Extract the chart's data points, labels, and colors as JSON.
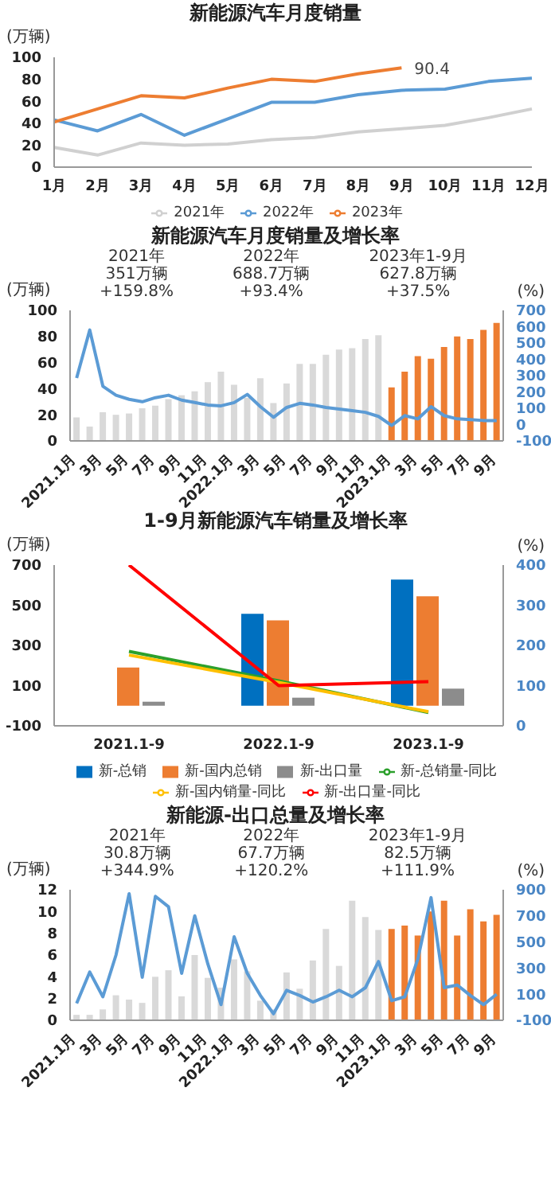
{
  "chart_data": [
    {
      "type": "line",
      "title": "新能源汽车月度销量",
      "ylabel": "(万辆)",
      "categories": [
        "1月",
        "2月",
        "3月",
        "4月",
        "5月",
        "6月",
        "7月",
        "8月",
        "9月",
        "10月",
        "11月",
        "12月"
      ],
      "ylim": [
        0,
        100
      ],
      "yticks": [
        0,
        20,
        40,
        60,
        80,
        100
      ],
      "legend": "bottom",
      "marker": "none",
      "series": [
        {
          "name": "2021年",
          "color": "#d0d0d0",
          "values": [
            18,
            11,
            22,
            20,
            21,
            25,
            27,
            32,
            35,
            38,
            45,
            53
          ]
        },
        {
          "name": "2022年",
          "color": "#5b9bd5",
          "values": [
            43,
            33,
            48,
            29,
            44,
            59,
            59,
            66,
            70,
            71,
            78,
            81
          ]
        },
        {
          "name": "2023年",
          "color": "#ed7d31",
          "values": [
            41,
            53,
            65,
            63,
            72,
            80,
            78,
            85,
            90.4,
            null,
            null,
            null
          ],
          "value_labels": [
            null,
            null,
            null,
            null,
            null,
            null,
            null,
            null,
            "90.4",
            null,
            null,
            null
          ]
        }
      ]
    },
    {
      "type": "bar",
      "title": "新能源汽车月度销量及增长率",
      "ylabel": "(万辆)",
      "y2label": "(%)",
      "annotations": [
        "2021年\n351万辆\n+159.8%",
        "2022年\n688.7万辆\n+93.4%",
        "2023年1-9月\n627.8万辆\n+37.5%"
      ],
      "categories": [
        "2021.1月",
        null,
        "3月",
        null,
        "5月",
        null,
        "7月",
        null,
        "9月",
        null,
        "11月",
        null,
        "2022.1月",
        null,
        "3月",
        null,
        "5月",
        null,
        "7月",
        null,
        "9月",
        null,
        "11月",
        null,
        "2023.1月",
        null,
        "3月",
        null,
        "5月",
        null,
        "7月",
        null,
        "9月"
      ],
      "ylim": [
        0,
        100
      ],
      "yticks": [
        0,
        20,
        40,
        60,
        80,
        100
      ],
      "y2lim": [
        -100,
        700
      ],
      "y2ticks": [
        -100,
        0,
        100,
        200,
        300,
        400,
        500,
        600,
        700
      ],
      "legend": false,
      "marker": "none",
      "series": [
        {
          "values": [
            18,
            11,
            22,
            20,
            21,
            25,
            27,
            32,
            35,
            38,
            45,
            53,
            43,
            33,
            48,
            29,
            44,
            59,
            59,
            66,
            70,
            71,
            78,
            81,
            41,
            53,
            65,
            63,
            72,
            80,
            78,
            85,
            90.4
          ],
          "colors": [
            "#d9d9d9",
            "#d9d9d9",
            "#d9d9d9",
            "#d9d9d9",
            "#d9d9d9",
            "#d9d9d9",
            "#d9d9d9",
            "#d9d9d9",
            "#d9d9d9",
            "#d9d9d9",
            "#d9d9d9",
            "#d9d9d9",
            "#d9d9d9",
            "#d9d9d9",
            "#d9d9d9",
            "#d9d9d9",
            "#d9d9d9",
            "#d9d9d9",
            "#d9d9d9",
            "#d9d9d9",
            "#d9d9d9",
            "#d9d9d9",
            "#d9d9d9",
            "#d9d9d9",
            "#ed7d31",
            "#ed7d31",
            "#ed7d31",
            "#ed7d31",
            "#ed7d31",
            "#ed7d31",
            "#ed7d31",
            "#ed7d31",
            "#ed7d31"
          ]
        },
        {
          "type": "line",
          "axis": "y2",
          "color": "#5b9bd5",
          "values": [
            285,
            580,
            235,
            180,
            155,
            140,
            165,
            180,
            150,
            135,
            120,
            115,
            135,
            185,
            110,
            45,
            105,
            130,
            120,
            105,
            95,
            85,
            75,
            50,
            -5,
            55,
            35,
            110,
            55,
            35,
            30,
            25,
            25
          ]
        }
      ]
    },
    {
      "type": "bar",
      "title": "1-9月新能源汽车销量及增长率",
      "ylabel": "(万辆)",
      "y2label": "(%)",
      "categories": [
        "2021.1-9",
        "2022.1-9",
        "2023.1-9"
      ],
      "ylim": [
        -100,
        700
      ],
      "yticks": [
        -100,
        100,
        300,
        500,
        700
      ],
      "y2lim": [
        0,
        400
      ],
      "y2ticks": [
        0,
        100,
        200,
        300,
        400
      ],
      "legend": "bottom",
      "marker": "none",
      "series": [
        {
          "name": "新-总销",
          "color": "#0070c0",
          "values": [
            null,
            457,
            628
          ]
        },
        {
          "name": "新-国内总销",
          "color": "#ed7d31",
          "values": [
            190,
            425,
            545
          ]
        },
        {
          "name": "新-出口量",
          "color": "#8c8c8c",
          "values": [
            20,
            40,
            85
          ]
        },
        {
          "type": "line",
          "axis": "y2",
          "name": "新-总销量-同比",
          "color": "#2ca02c",
          "values": [
            185,
            112,
            33
          ]
        },
        {
          "type": "line",
          "axis": "y2",
          "name": "新-国内销量-同比",
          "color": "#ffc000",
          "values": [
            176,
            108,
            35
          ]
        },
        {
          "type": "line",
          "axis": "y2",
          "name": "新-出口量-同比",
          "color": "#ff0000",
          "values": [
            400,
            100,
            110
          ]
        }
      ]
    },
    {
      "type": "bar",
      "title": "新能源-出口总量及增长率",
      "ylabel": "(万辆)",
      "y2label": "(%)",
      "annotations": [
        "2021年\n30.8万辆\n+344.9%",
        "2022年\n67.7万辆\n+120.2%",
        "2023年1-9月\n82.5万辆\n+111.9%"
      ],
      "categories": [
        "2021.1月",
        null,
        "3月",
        null,
        "5月",
        null,
        "7月",
        null,
        "9月",
        null,
        "11月",
        null,
        "2022.1月",
        null,
        "3月",
        null,
        "5月",
        null,
        "7月",
        null,
        "9月",
        null,
        "11月",
        null,
        "2023.1月",
        null,
        "3月",
        null,
        "5月",
        null,
        "7月",
        null,
        "9月"
      ],
      "ylim": [
        0,
        12
      ],
      "yticks": [
        0,
        2,
        4,
        6,
        8,
        10,
        12
      ],
      "y2lim": [
        -100,
        900
      ],
      "y2ticks": [
        -100,
        100,
        300,
        500,
        700,
        900
      ],
      "legend": false,
      "marker": "none",
      "series": [
        {
          "values": [
            0.5,
            0.5,
            1.0,
            2.3,
            1.9,
            1.6,
            4.0,
            4.6,
            2.2,
            6.0,
            3.9,
            3.0,
            5.6,
            4.5,
            1.8,
            1.0,
            4.4,
            2.9,
            5.5,
            8.4,
            5.0,
            11.0,
            9.5,
            8.3,
            8.4,
            8.7,
            7.8,
            10.0,
            11.0,
            7.8,
            10.2,
            9.1,
            9.7
          ],
          "colors": [
            "#d9d9d9",
            "#d9d9d9",
            "#d9d9d9",
            "#d9d9d9",
            "#d9d9d9",
            "#d9d9d9",
            "#d9d9d9",
            "#d9d9d9",
            "#d9d9d9",
            "#d9d9d9",
            "#d9d9d9",
            "#d9d9d9",
            "#d9d9d9",
            "#d9d9d9",
            "#d9d9d9",
            "#d9d9d9",
            "#d9d9d9",
            "#d9d9d9",
            "#d9d9d9",
            "#d9d9d9",
            "#d9d9d9",
            "#d9d9d9",
            "#d9d9d9",
            "#d9d9d9",
            "#ed7d31",
            "#ed7d31",
            "#ed7d31",
            "#ed7d31",
            "#ed7d31",
            "#ed7d31",
            "#ed7d31",
            "#ed7d31",
            "#ed7d31"
          ]
        },
        {
          "type": "line",
          "axis": "y2",
          "color": "#5b9bd5",
          "values": [
            30,
            270,
            80,
            400,
            870,
            230,
            850,
            770,
            260,
            700,
            330,
            20,
            540,
            260,
            90,
            -50,
            130,
            90,
            40,
            80,
            130,
            80,
            150,
            350,
            50,
            80,
            370,
            840,
            150,
            170,
            90,
            20,
            100
          ]
        }
      ]
    }
  ]
}
